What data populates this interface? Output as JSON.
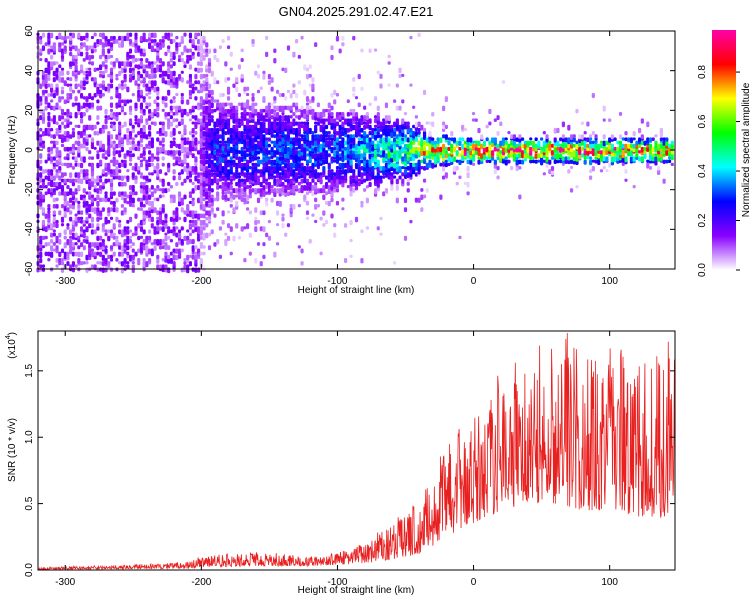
{
  "figure": {
    "title": "GN04.2025.291.02.47.E21"
  },
  "chart_data": [
    {
      "type": "heatmap",
      "title": "GN04.2025.291.02.47.E21",
      "xlabel": "Height of straight line (km)",
      "ylabel": "Frequency (Hz)",
      "xlim": [
        -320,
        148
      ],
      "ylim": [
        -60,
        60
      ],
      "xticks": [
        -300,
        -200,
        -100,
        0,
        100
      ],
      "yticks": [
        -60,
        -40,
        -20,
        0,
        20,
        40,
        60
      ],
      "colorbar": {
        "label": "Normalized spectral amplitude",
        "range": [
          0.0,
          0.97
        ],
        "ticks": [
          0.0,
          0.2,
          0.4,
          0.6,
          0.8
        ],
        "tick_labels": [
          "0.0",
          "0.2",
          "0.4",
          "0.6",
          "0.8"
        ],
        "colormap": [
          "#ffffff",
          "#8800ff",
          "#0000ff",
          "#00ffff",
          "#00ff00",
          "#ffff00",
          "#ff0000",
          "#ff00aa"
        ]
      },
      "description_points": [
        {
          "x": -320,
          "spread_hz": 60,
          "peak_amplitude": 0.1
        },
        {
          "x": -200,
          "spread_hz": 60,
          "peak_amplitude": 0.12
        },
        {
          "x": -190,
          "spread_hz": 25,
          "peak_amplitude": 0.3
        },
        {
          "x": -100,
          "spread_hz": 20,
          "peak_amplitude": 0.35
        },
        {
          "x": -50,
          "spread_hz": 15,
          "peak_amplitude": 0.55
        },
        {
          "x": -30,
          "spread_hz": 8,
          "peak_amplitude": 0.8
        },
        {
          "x": 0,
          "spread_hz": 6,
          "peak_amplitude": 0.9
        },
        {
          "x": 148,
          "spread_hz": 6,
          "peak_amplitude": 0.85
        }
      ]
    },
    {
      "type": "line",
      "xlabel": "Height of straight line (km)",
      "ylabel": "SNR (10 * v/v)",
      "scale_label": "(x10",
      "scale_exponent": "4",
      "xlim": [
        -320,
        148
      ],
      "ylim": [
        0,
        1.8
      ],
      "xticks": [
        -300,
        -200,
        -100,
        0,
        100
      ],
      "yticks": [
        0.0,
        0.5,
        1.0,
        1.5
      ],
      "ytick_labels": [
        "0.0",
        "0.5",
        "1.0",
        "1.5"
      ],
      "color": "#e82020",
      "envelope": {
        "x": [
          -320,
          -250,
          -210,
          -200,
          -160,
          -120,
          -100,
          -80,
          -60,
          -40,
          -30,
          -20,
          -10,
          0,
          10,
          20,
          40,
          60,
          80,
          100,
          120,
          148
        ],
        "peak": [
          0.02,
          0.04,
          0.06,
          0.1,
          0.14,
          0.1,
          0.13,
          0.2,
          0.35,
          0.55,
          0.75,
          0.95,
          1.05,
          1.15,
          1.35,
          1.45,
          1.55,
          1.75,
          1.65,
          1.7,
          1.55,
          1.7
        ],
        "base": [
          0.0,
          0.01,
          0.01,
          0.02,
          0.03,
          0.03,
          0.04,
          0.05,
          0.08,
          0.12,
          0.18,
          0.25,
          0.3,
          0.35,
          0.4,
          0.45,
          0.5,
          0.5,
          0.45,
          0.45,
          0.4,
          0.4
        ]
      }
    }
  ]
}
